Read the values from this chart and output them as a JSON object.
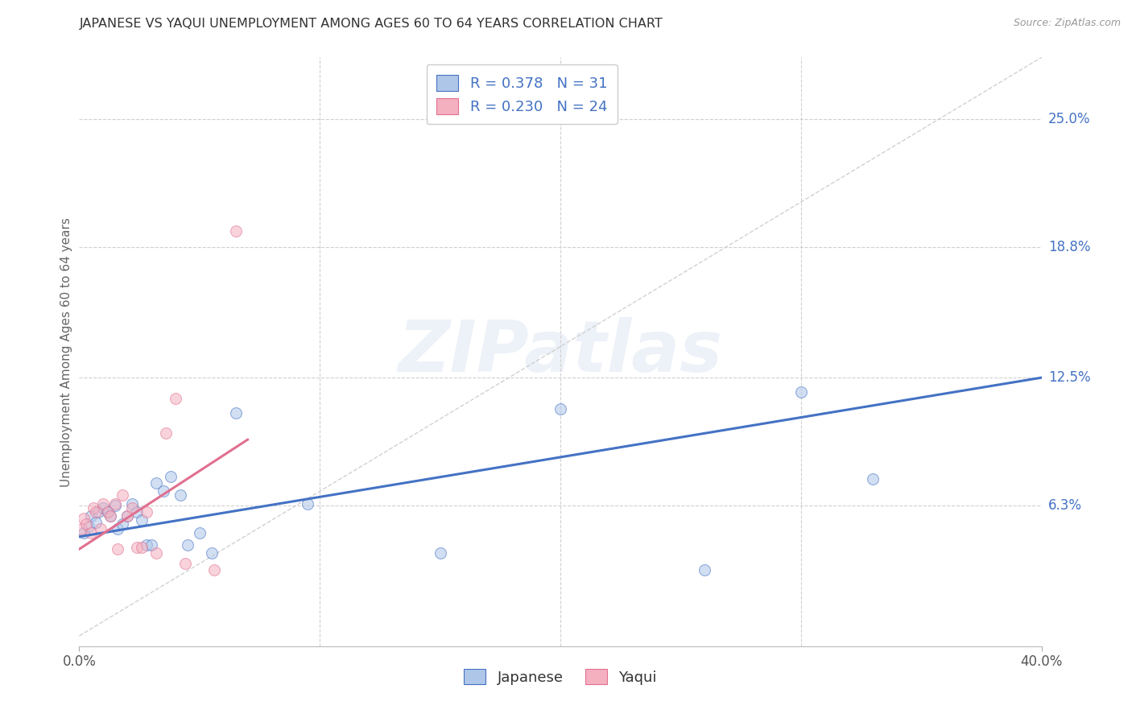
{
  "title": "JAPANESE VS YAQUI UNEMPLOYMENT AMONG AGES 60 TO 64 YEARS CORRELATION CHART",
  "source": "Source: ZipAtlas.com",
  "ylabel": "Unemployment Among Ages 60 to 64 years",
  "xlim": [
    0.0,
    0.4
  ],
  "ylim": [
    -0.005,
    0.28
  ],
  "ytick_labels": [
    "6.3%",
    "12.5%",
    "18.8%",
    "25.0%"
  ],
  "ytick_positions": [
    0.063,
    0.125,
    0.188,
    0.25
  ],
  "legend_label1": "R = 0.378   N = 31",
  "legend_label2": "R = 0.230   N = 24",
  "legend_bottom_label1": "Japanese",
  "legend_bottom_label2": "Yaqui",
  "japanese_fill": "#aec6e8",
  "yaqui_fill": "#f5b0c0",
  "japanese_edge": "#4472c4",
  "yaqui_edge": "#e07090",
  "jap_line_color": "#4472c4",
  "yaq_line_color": "#e07090",
  "diag_color": "#cccccc",
  "grid_color": "#d0d0d0",
  "watermark": "ZIPatlas",
  "japanese_x": [
    0.002,
    0.004,
    0.005,
    0.007,
    0.008,
    0.01,
    0.012,
    0.013,
    0.015,
    0.016,
    0.018,
    0.02,
    0.022,
    0.024,
    0.026,
    0.028,
    0.03,
    0.032,
    0.035,
    0.038,
    0.042,
    0.045,
    0.05,
    0.055,
    0.065,
    0.095,
    0.15,
    0.2,
    0.26,
    0.3,
    0.33
  ],
  "japanese_y": [
    0.05,
    0.053,
    0.058,
    0.055,
    0.06,
    0.062,
    0.06,
    0.058,
    0.063,
    0.052,
    0.054,
    0.058,
    0.064,
    0.06,
    0.056,
    0.044,
    0.044,
    0.074,
    0.07,
    0.077,
    0.068,
    0.044,
    0.05,
    0.04,
    0.108,
    0.064,
    0.04,
    0.11,
    0.032,
    0.118,
    0.076
  ],
  "yaqui_x": [
    0.001,
    0.002,
    0.003,
    0.005,
    0.006,
    0.007,
    0.009,
    0.01,
    0.012,
    0.013,
    0.015,
    0.016,
    0.018,
    0.02,
    0.022,
    0.024,
    0.026,
    0.028,
    0.032,
    0.036,
    0.04,
    0.044,
    0.056,
    0.065
  ],
  "yaqui_y": [
    0.052,
    0.057,
    0.054,
    0.05,
    0.062,
    0.06,
    0.052,
    0.064,
    0.06,
    0.058,
    0.064,
    0.042,
    0.068,
    0.058,
    0.062,
    0.043,
    0.043,
    0.06,
    0.04,
    0.098,
    0.115,
    0.035,
    0.032,
    0.196
  ],
  "jap_line_x0": 0.0,
  "jap_line_y0": 0.048,
  "jap_line_x1": 0.4,
  "jap_line_y1": 0.125,
  "yaq_line_x0": 0.0,
  "yaq_line_y0": 0.042,
  "yaq_line_x1": 0.07,
  "yaq_line_y1": 0.095,
  "background_color": "#ffffff",
  "marker_size": 100,
  "marker_alpha": 0.55
}
